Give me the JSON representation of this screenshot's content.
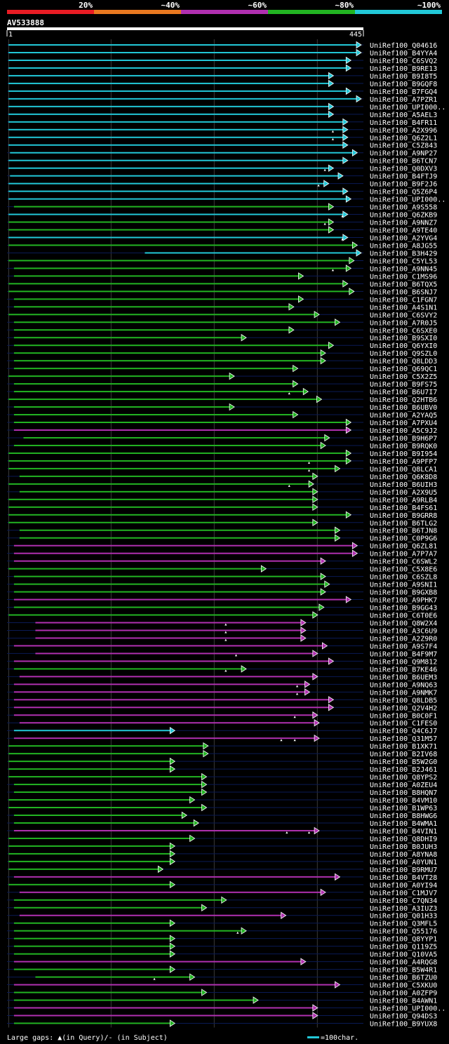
{
  "colors": {
    "background": "#000000",
    "red": "#e81c24",
    "orange": "#e87820",
    "magenta": "#b030b0",
    "green": "#22b422",
    "cyan": "#22c8d8",
    "grid": "#3a3a3a",
    "track": "#0a1a55"
  },
  "legend_bar": {
    "labels": [
      "20%",
      "~40%",
      "~60%",
      "~80%",
      "~100%"
    ],
    "colors": [
      "red",
      "orange",
      "magenta",
      "green",
      "cyan"
    ]
  },
  "query": {
    "name": "AV533888",
    "start": "1",
    "end": "445",
    "length": 445
  },
  "footer": {
    "gaps_text": "Large gaps: ▲(in Query)/- (in Subject)",
    "scale_text": "=100char."
  },
  "chart_data": {
    "type": "alignment-hits",
    "title": "AV533888",
    "xlim": [
      1,
      445
    ],
    "grid_at": [
      1,
      130,
      260,
      390
    ],
    "series_colors": [
      "cyan",
      "green",
      "magenta"
    ],
    "hits": [
      {
        "name": "UniRef100_Q04616",
        "start": 1,
        "end": 445,
        "color": "cyan",
        "marks": []
      },
      {
        "name": "UniRef100_B4YYA4",
        "start": 1,
        "end": 445,
        "color": "cyan",
        "marks": []
      },
      {
        "name": "UniRef100_C6SVQ2",
        "start": 1,
        "end": 432,
        "color": "cyan",
        "marks": []
      },
      {
        "name": "UniRef100_B9RE13",
        "start": 1,
        "end": 432,
        "color": "cyan",
        "marks": []
      },
      {
        "name": "UniRef100_B9I8T5",
        "start": 1,
        "end": 410,
        "color": "cyan",
        "marks": []
      },
      {
        "name": "UniRef100_B9GQF8",
        "start": 1,
        "end": 410,
        "color": "cyan",
        "marks": []
      },
      {
        "name": "UniRef100_B7FGQ4",
        "start": 1,
        "end": 432,
        "color": "cyan",
        "marks": []
      },
      {
        "name": "UniRef100_A7PZR1",
        "start": 1,
        "end": 445,
        "color": "cyan",
        "marks": []
      },
      {
        "name": "UniRef100_UPI000..",
        "start": 1,
        "end": 410,
        "color": "cyan",
        "marks": []
      },
      {
        "name": "UniRef100_A5AEL3",
        "start": 1,
        "end": 410,
        "color": "cyan",
        "marks": []
      },
      {
        "name": "UniRef100_B4FR11",
        "start": 1,
        "end": 428,
        "color": "cyan",
        "marks": []
      },
      {
        "name": "UniRef100_A2X996",
        "start": 1,
        "end": 428,
        "color": "cyan",
        "marks": [
          410
        ]
      },
      {
        "name": "UniRef100_Q6Z2L1",
        "start": 1,
        "end": 428,
        "color": "cyan",
        "marks": [
          410
        ]
      },
      {
        "name": "UniRef100_C5Z843",
        "start": 1,
        "end": 428,
        "color": "cyan",
        "marks": []
      },
      {
        "name": "UniRef100_A9NP27",
        "start": 3,
        "end": 440,
        "color": "cyan",
        "marks": []
      },
      {
        "name": "UniRef100_B6TCN7",
        "start": 1,
        "end": 428,
        "color": "cyan",
        "marks": []
      },
      {
        "name": "UniRef100_Q0DXV3",
        "start": 1,
        "end": 410,
        "color": "cyan",
        "marks": [
          400
        ]
      },
      {
        "name": "UniRef100_B4FTJ9",
        "start": 3,
        "end": 422,
        "color": "cyan",
        "marks": []
      },
      {
        "name": "UniRef100_B9F2J6",
        "start": 1,
        "end": 404,
        "color": "cyan",
        "marks": [
          392
        ]
      },
      {
        "name": "UniRef100_Q5Z6P4",
        "start": 1,
        "end": 428,
        "color": "cyan",
        "marks": []
      },
      {
        "name": "UniRef100_UPI000..",
        "start": 1,
        "end": 432,
        "color": "cyan",
        "marks": []
      },
      {
        "name": "UniRef100_A9S558",
        "start": 8,
        "end": 410,
        "color": "green",
        "marks": []
      },
      {
        "name": "UniRef100_Q6ZKB9",
        "start": 1,
        "end": 428,
        "color": "cyan",
        "marks": [
          422
        ]
      },
      {
        "name": "UniRef100_A9NNZ7",
        "start": 1,
        "end": 410,
        "color": "green",
        "marks": [
          400
        ]
      },
      {
        "name": "UniRef100_A9TE40",
        "start": 1,
        "end": 410,
        "color": "green",
        "marks": []
      },
      {
        "name": "UniRef100_A2YVG4",
        "start": 1,
        "end": 428,
        "color": "cyan",
        "marks": [
          422
        ]
      },
      {
        "name": "UniRef100_A8JG55",
        "start": 1,
        "end": 440,
        "color": "green",
        "marks": []
      },
      {
        "name": "UniRef100_B3H429",
        "start": 173,
        "end": 445,
        "color": "cyan",
        "marks": []
      },
      {
        "name": "UniRef100_C5YL53",
        "start": 1,
        "end": 436,
        "color": "green",
        "marks": []
      },
      {
        "name": "UniRef100_A9NN45",
        "start": 8,
        "end": 432,
        "color": "green",
        "marks": [
          410
        ]
      },
      {
        "name": "UniRef100_C1MS96",
        "start": 8,
        "end": 372,
        "color": "green",
        "marks": []
      },
      {
        "name": "UniRef100_B6TQX5",
        "start": 1,
        "end": 428,
        "color": "green",
        "marks": []
      },
      {
        "name": "UniRef100_B6SNJ7",
        "start": 1,
        "end": 436,
        "color": "green",
        "marks": []
      },
      {
        "name": "UniRef100_C1FGN7",
        "start": 8,
        "end": 372,
        "color": "green",
        "marks": []
      },
      {
        "name": "UniRef100_A4S1N1",
        "start": 8,
        "end": 360,
        "color": "green",
        "marks": []
      },
      {
        "name": "UniRef100_C6SVY2",
        "start": 1,
        "end": 392,
        "color": "green",
        "marks": []
      },
      {
        "name": "UniRef100_A7R0J5",
        "start": 8,
        "end": 418,
        "color": "green",
        "marks": []
      },
      {
        "name": "UniRef100_C6SXE0",
        "start": 8,
        "end": 360,
        "color": "green",
        "marks": []
      },
      {
        "name": "UniRef100_B9SXI0",
        "start": 8,
        "end": 300,
        "color": "green",
        "marks": []
      },
      {
        "name": "UniRef100_Q6YXI0",
        "start": 8,
        "end": 410,
        "color": "green",
        "marks": []
      },
      {
        "name": "UniRef100_Q9SZL0",
        "start": 8,
        "end": 400,
        "color": "green",
        "marks": []
      },
      {
        "name": "UniRef100_Q8LDD3",
        "start": 8,
        "end": 400,
        "color": "green",
        "marks": []
      },
      {
        "name": "UniRef100_Q69QC1",
        "start": 8,
        "end": 365,
        "color": "green",
        "marks": []
      },
      {
        "name": "UniRef100_C5X2Z5",
        "start": 1,
        "end": 285,
        "color": "green",
        "marks": []
      },
      {
        "name": "UniRef100_B9FS75",
        "start": 8,
        "end": 365,
        "color": "green",
        "marks": []
      },
      {
        "name": "UniRef100_B6U7I7",
        "start": 8,
        "end": 378,
        "color": "green",
        "marks": [
          355
        ]
      },
      {
        "name": "UniRef100_Q2HTB6",
        "start": 1,
        "end": 395,
        "color": "green",
        "marks": []
      },
      {
        "name": "UniRef100_B6UBV0",
        "start": 8,
        "end": 285,
        "color": "green",
        "marks": []
      },
      {
        "name": "UniRef100_A2YAQ5",
        "start": 8,
        "end": 365,
        "color": "green",
        "marks": []
      },
      {
        "name": "UniRef100_A7PXU4",
        "start": 8,
        "end": 432,
        "color": "green",
        "marks": []
      },
      {
        "name": "UniRef100_A5C9J2",
        "start": 8,
        "end": 432,
        "color": "magenta",
        "marks": []
      },
      {
        "name": "UniRef100_B9H6P7",
        "start": 20,
        "end": 405,
        "color": "green",
        "marks": []
      },
      {
        "name": "UniRef100_B9RQK0",
        "start": 8,
        "end": 400,
        "color": "green",
        "marks": []
      },
      {
        "name": "UniRef100_B9I954",
        "start": 1,
        "end": 432,
        "color": "green",
        "marks": []
      },
      {
        "name": "UniRef100_A9PFP7",
        "start": 1,
        "end": 432,
        "color": "green",
        "marks": [
          380
        ]
      },
      {
        "name": "UniRef100_Q8LCA1",
        "start": 1,
        "end": 418,
        "color": "green",
        "marks": [
          380
        ]
      },
      {
        "name": "UniRef100_Q6K8D8",
        "start": 15,
        "end": 390,
        "color": "green",
        "marks": []
      },
      {
        "name": "UniRef100_B6UIH3",
        "start": 1,
        "end": 385,
        "color": "green",
        "marks": [
          355
        ]
      },
      {
        "name": "UniRef100_A2X9U5",
        "start": 15,
        "end": 390,
        "color": "green",
        "marks": []
      },
      {
        "name": "UniRef100_A9RLB4",
        "start": 1,
        "end": 390,
        "color": "green",
        "marks": []
      },
      {
        "name": "UniRef100_B4FS61",
        "start": 1,
        "end": 390,
        "color": "green",
        "marks": []
      },
      {
        "name": "UniRef100_B9GRR8",
        "start": 1,
        "end": 432,
        "color": "green",
        "marks": []
      },
      {
        "name": "UniRef100_B6TLG2",
        "start": 1,
        "end": 390,
        "color": "green",
        "marks": []
      },
      {
        "name": "UniRef100_B6TJN8",
        "start": 15,
        "end": 418,
        "color": "green",
        "marks": []
      },
      {
        "name": "UniRef100_C0P9G6",
        "start": 15,
        "end": 418,
        "color": "green",
        "marks": []
      },
      {
        "name": "UniRef100_Q6ZL81",
        "start": 8,
        "end": 440,
        "color": "magenta",
        "marks": []
      },
      {
        "name": "UniRef100_A7P7A7",
        "start": 8,
        "end": 440,
        "color": "magenta",
        "marks": []
      },
      {
        "name": "UniRef100_C6SWL2",
        "start": 8,
        "end": 400,
        "color": "magenta",
        "marks": []
      },
      {
        "name": "UniRef100_C5X8E6",
        "start": 1,
        "end": 325,
        "color": "green",
        "marks": []
      },
      {
        "name": "UniRef100_C6SZL8",
        "start": 8,
        "end": 400,
        "color": "green",
        "marks": []
      },
      {
        "name": "UniRef100_A9SNI1",
        "start": 8,
        "end": 405,
        "color": "green",
        "marks": []
      },
      {
        "name": "UniRef100_B9GXB8",
        "start": 8,
        "end": 400,
        "color": "green",
        "marks": []
      },
      {
        "name": "UniRef100_A9PHK7",
        "start": 8,
        "end": 432,
        "color": "magenta",
        "marks": []
      },
      {
        "name": "UniRef100_B9GG43",
        "start": 8,
        "end": 398,
        "color": "green",
        "marks": []
      },
      {
        "name": "UniRef100_C6T0E6",
        "start": 1,
        "end": 390,
        "color": "green",
        "marks": []
      },
      {
        "name": "UniRef100_Q8W2X4",
        "start": 35,
        "end": 375,
        "color": "magenta",
        "marks": [
          275
        ]
      },
      {
        "name": "UniRef100_A3C6U9",
        "start": 35,
        "end": 375,
        "color": "magenta",
        "marks": [
          275
        ]
      },
      {
        "name": "UniRef100_A2Z9R0",
        "start": 35,
        "end": 375,
        "color": "magenta",
        "marks": [
          275
        ]
      },
      {
        "name": "UniRef100_A9S7F4",
        "start": 8,
        "end": 402,
        "color": "magenta",
        "marks": []
      },
      {
        "name": "UniRef100_B4F9M7",
        "start": 35,
        "end": 390,
        "color": "magenta",
        "marks": [
          288
        ]
      },
      {
        "name": "UniRef100_Q9M812",
        "start": 8,
        "end": 410,
        "color": "magenta",
        "marks": []
      },
      {
        "name": "UniRef100_B7KE46",
        "start": 8,
        "end": 300,
        "color": "green",
        "marks": [
          275
        ]
      },
      {
        "name": "UniRef100_B6UEM3",
        "start": 15,
        "end": 390,
        "color": "magenta",
        "marks": []
      },
      {
        "name": "UniRef100_A9NQ63",
        "start": 8,
        "end": 380,
        "color": "magenta",
        "marks": [
          365
        ]
      },
      {
        "name": "UniRef100_A9NMK7",
        "start": 8,
        "end": 380,
        "color": "magenta",
        "marks": [
          365
        ]
      },
      {
        "name": "UniRef100_Q8LDB5",
        "start": 8,
        "end": 410,
        "color": "magenta",
        "marks": []
      },
      {
        "name": "UniRef100_Q2V4H2",
        "start": 8,
        "end": 410,
        "color": "magenta",
        "marks": []
      },
      {
        "name": "UniRef100_B0C0F1",
        "start": 8,
        "end": 390,
        "color": "magenta",
        "marks": [
          362
        ]
      },
      {
        "name": "UniRef100_C1FES0",
        "start": 15,
        "end": 392,
        "color": "magenta",
        "marks": []
      },
      {
        "name": "UniRef100_Q4C6J7",
        "start": 8,
        "end": 210,
        "color": "cyan",
        "marks": []
      },
      {
        "name": "UniRef100_Q31M57",
        "start": 8,
        "end": 392,
        "color": "magenta",
        "marks": [
          345,
          362
        ]
      },
      {
        "name": "UniRef100_B1XK71",
        "start": 1,
        "end": 252,
        "color": "green",
        "marks": []
      },
      {
        "name": "UniRef100_B2IV68",
        "start": 1,
        "end": 252,
        "color": "green",
        "marks": []
      },
      {
        "name": "UniRef100_B5W2G0",
        "start": 1,
        "end": 210,
        "color": "green",
        "marks": []
      },
      {
        "name": "UniRef100_B2J461",
        "start": 1,
        "end": 210,
        "color": "green",
        "marks": []
      },
      {
        "name": "UniRef100_Q8YPS2",
        "start": 1,
        "end": 250,
        "color": "green",
        "marks": []
      },
      {
        "name": "UniRef100_A0ZEU4",
        "start": 8,
        "end": 250,
        "color": "green",
        "marks": []
      },
      {
        "name": "UniRef100_B8HQN7",
        "start": 8,
        "end": 250,
        "color": "green",
        "marks": []
      },
      {
        "name": "UniRef100_B4VM10",
        "start": 1,
        "end": 235,
        "color": "green",
        "marks": []
      },
      {
        "name": "UniRef100_B1WP63",
        "start": 1,
        "end": 250,
        "color": "green",
        "marks": []
      },
      {
        "name": "UniRef100_B8HWG6",
        "start": 8,
        "end": 225,
        "color": "green",
        "marks": []
      },
      {
        "name": "UniRef100_B4WMA1",
        "start": 8,
        "end": 240,
        "color": "green",
        "marks": []
      },
      {
        "name": "UniRef100_B4VIN1",
        "start": 8,
        "end": 392,
        "color": "magenta",
        "marks": [
          352,
          380
        ]
      },
      {
        "name": "UniRef100_Q8DHI9",
        "start": 1,
        "end": 235,
        "color": "green",
        "marks": []
      },
      {
        "name": "UniRef100_B0JUH3",
        "start": 1,
        "end": 210,
        "color": "green",
        "marks": []
      },
      {
        "name": "UniRef100_A8YNA8",
        "start": 1,
        "end": 210,
        "color": "green",
        "marks": []
      },
      {
        "name": "UniRef100_A0YUN1",
        "start": 1,
        "end": 210,
        "color": "green",
        "marks": []
      },
      {
        "name": "UniRef100_B9RMU7",
        "start": 1,
        "end": 195,
        "color": "green",
        "marks": []
      },
      {
        "name": "UniRef100_B4VT28",
        "start": 8,
        "end": 418,
        "color": "magenta",
        "marks": []
      },
      {
        "name": "UniRef100_A0YI94",
        "start": 1,
        "end": 210,
        "color": "green",
        "marks": []
      },
      {
        "name": "UniRef100_C1MJV7",
        "start": 15,
        "end": 400,
        "color": "magenta",
        "marks": []
      },
      {
        "name": "UniRef100_C7QN34",
        "start": 8,
        "end": 275,
        "color": "green",
        "marks": []
      },
      {
        "name": "UniRef100_A3IUZ3",
        "start": 8,
        "end": 250,
        "color": "green",
        "marks": []
      },
      {
        "name": "UniRef100_Q01H33",
        "start": 15,
        "end": 350,
        "color": "magenta",
        "marks": []
      },
      {
        "name": "UniRef100_Q3MFL5",
        "start": 8,
        "end": 210,
        "color": "green",
        "marks": []
      },
      {
        "name": "UniRef100_Q55176",
        "start": 8,
        "end": 300,
        "color": "green",
        "marks": [
          290
        ]
      },
      {
        "name": "UniRef100_Q8YYP1",
        "start": 8,
        "end": 210,
        "color": "green",
        "marks": []
      },
      {
        "name": "UniRef100_Q119Z5",
        "start": 8,
        "end": 210,
        "color": "green",
        "marks": []
      },
      {
        "name": "UniRef100_Q10VA5",
        "start": 8,
        "end": 210,
        "color": "green",
        "marks": []
      },
      {
        "name": "UniRef100_A4RQG8",
        "start": 8,
        "end": 375,
        "color": "magenta",
        "marks": []
      },
      {
        "name": "UniRef100_B5W4R1",
        "start": 8,
        "end": 210,
        "color": "green",
        "marks": []
      },
      {
        "name": "UniRef100_B6TZU0",
        "start": 35,
        "end": 235,
        "color": "green",
        "marks": [
          185
        ]
      },
      {
        "name": "UniRef100_C5XKU0",
        "start": 8,
        "end": 418,
        "color": "magenta",
        "marks": []
      },
      {
        "name": "UniRef100_A0ZFP9",
        "start": 8,
        "end": 250,
        "color": "green",
        "marks": []
      },
      {
        "name": "UniRef100_B4AWN1",
        "start": 8,
        "end": 315,
        "color": "green",
        "marks": []
      },
      {
        "name": "UniRef100_UPI000..",
        "start": 8,
        "end": 390,
        "color": "magenta",
        "marks": []
      },
      {
        "name": "UniRef100_Q94DS3",
        "start": 8,
        "end": 390,
        "color": "magenta",
        "marks": []
      },
      {
        "name": "UniRef100_B9YUX8",
        "start": 8,
        "end": 210,
        "color": "green",
        "marks": []
      }
    ]
  }
}
